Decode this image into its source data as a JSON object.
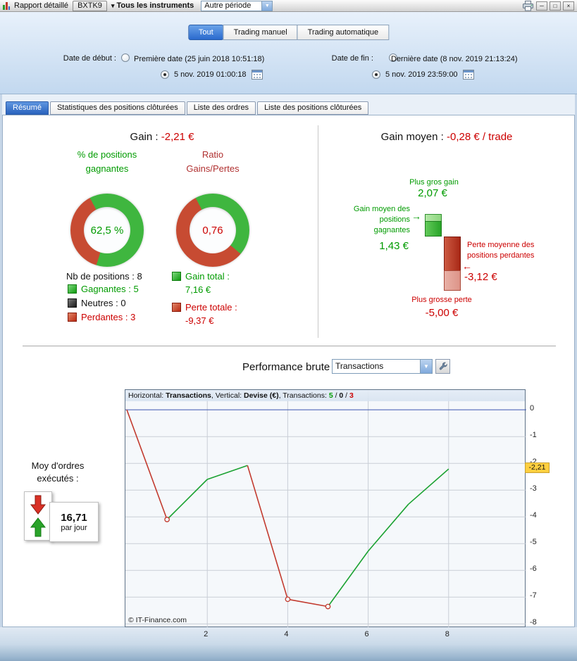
{
  "colors": {
    "green": "#009b00",
    "red": "#cc0000",
    "maroon": "#b03030",
    "donut_green": "#3fb63f",
    "donut_red": "#c74b32",
    "line_green": "#1ba232",
    "line_red": "#c23a2e",
    "zero_line_blue": "#3a56b0",
    "active_tab_blue": "#2a63be",
    "tag_yellow": "#ffcf40"
  },
  "icons": {
    "caret_down": "▾",
    "dropdown_arrow": "▼",
    "minimize": "─",
    "maximize": "□",
    "close": "×",
    "arrow_right": "→",
    "arrow_left": "←"
  },
  "window": {
    "title": "Rapport détaillé",
    "instrument_tab": "BXTK9",
    "instruments_dropdown": "Tous les instruments",
    "period_select": "Autre période"
  },
  "scope_tabs": [
    {
      "label": "Tout",
      "active": "true"
    },
    {
      "label": "Trading manuel",
      "active": "false"
    },
    {
      "label": "Trading automatique",
      "active": "false"
    }
  ],
  "dates": {
    "start_label": "Date de début :",
    "start_first_option": "Première date (25 juin 2018 10:51:18)",
    "start_first_selected": "false",
    "start_custom_value": "5 nov. 2019 01:00:18",
    "start_custom_selected": "true",
    "end_label": "Date de fin :",
    "end_last_option": "Dernière date (8 nov. 2019 21:13:24)",
    "end_last_selected": "false",
    "end_custom_value": "5 nov. 2019 23:59:00",
    "end_custom_selected": "true"
  },
  "nav_tabs": [
    {
      "label": "Résumé",
      "active": "true"
    },
    {
      "label": "Statistiques des positions clôturées",
      "active": "false"
    },
    {
      "label": "Liste des ordres",
      "active": "false"
    },
    {
      "label": "Liste des positions clôturées",
      "active": "false"
    }
  ],
  "summary": {
    "gain_label": "Gain :",
    "gain_value": "-2,21 €",
    "gain_avg_label": "Gain moyen :",
    "gain_avg_value": "-0,28 € / trade",
    "win_pct": {
      "title": "% de positions gagnantes",
      "value": "62,5 %",
      "percent": 62.5
    },
    "ratio": {
      "title": "Ratio Gains/Pertes",
      "value": "0,76",
      "green_percent": 44
    },
    "positions_label": "Nb de positions : 8",
    "legend": [
      {
        "label": "Gagnantes : 5"
      },
      {
        "label": "Neutres : 0"
      },
      {
        "label": "Perdantes : 3"
      }
    ],
    "gain_total_label": "Gain total :",
    "gain_total_value": "7,16 €",
    "loss_total_label": "Perte totale :",
    "loss_total_value": "-9,37 €",
    "bars": {
      "biggest_gain_label": "Plus gros gain",
      "biggest_gain_value": "2,07 €",
      "biggest_gain_num": 2.07,
      "avg_gain_label": "Gain moyen des positions gagnantes",
      "avg_gain_value": "1,43 €",
      "avg_gain_num": 1.43,
      "avg_loss_label": "Perte moyenne des positions perdantes",
      "avg_loss_value": "-3,12 €",
      "avg_loss_num": 3.12,
      "biggest_loss_label": "Plus grosse perte",
      "biggest_loss_value": "-5,00 €",
      "biggest_loss_num": 5.0
    }
  },
  "performance": {
    "title": "Performance brute",
    "select_value": "Transactions",
    "avg_orders_label": "Moy d'ordres exécutés :",
    "avg_orders_value": "16,71",
    "avg_orders_unit": "par jour",
    "copyright": "© IT-Finance.com"
  },
  "chart_data": {
    "type": "line",
    "title": "Performance brute (Transactions)",
    "xlabel": "Transactions",
    "ylabel": "Devise (€)",
    "header_parts": [
      {
        "t": "Horizontal: "
      },
      {
        "t": "Transactions",
        "b": 1
      },
      {
        "t": ", Vertical: "
      },
      {
        "t": "Devise (€)",
        "b": 1
      },
      {
        "t": ", Transactions: "
      },
      {
        "t": "5",
        "b": 1,
        "c": "#009b00"
      },
      {
        "t": " / "
      },
      {
        "t": "0",
        "b": 1
      },
      {
        "t": " / "
      },
      {
        "t": "3",
        "b": 1,
        "c": "#cc0000"
      }
    ],
    "x": [
      0,
      1,
      2,
      3,
      4,
      5,
      6,
      7,
      8
    ],
    "equity": [
      0,
      -4.1,
      -2.6,
      -2.08,
      -7.08,
      -7.35,
      -5.28,
      -3.53,
      -2.21
    ],
    "trade_results": [
      -4.1,
      1.5,
      0.52,
      -5.0,
      -0.27,
      2.07,
      1.75,
      1.32
    ],
    "segment_results": [
      "loss",
      "gain",
      "gain",
      "loss",
      "loss",
      "gain",
      "gain",
      "gain"
    ],
    "loss_markers_x": [
      1,
      4,
      5
    ],
    "counts": {
      "gains": 5,
      "neutral": 0,
      "losses": 3
    },
    "xticks": [
      2,
      4,
      6,
      8
    ],
    "yticks": [
      0,
      -1,
      -2,
      -3,
      -4,
      -5,
      -6,
      -7,
      -8
    ],
    "xlim": [
      -0.035,
      9.93
    ],
    "ylim": [
      -8.15,
      0.74
    ],
    "zero_line": 0,
    "grid": true,
    "legend_position": "none",
    "last_value": -2.21,
    "last_value_label": "-2,21"
  }
}
